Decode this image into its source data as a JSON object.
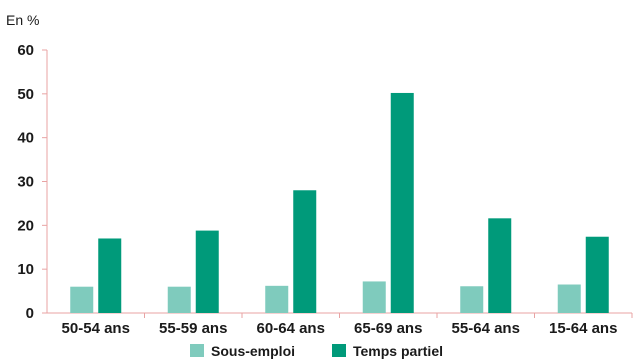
{
  "chart_data": {
    "type": "bar",
    "unit_label": "En %",
    "categories": [
      "50-54 ans",
      "55-59 ans",
      "60-64 ans",
      "65-69 ans",
      "55-64 ans",
      "15-64 ans"
    ],
    "series": [
      {
        "name": "Sous-emploi",
        "color": "#7fcbbd",
        "values": [
          6,
          6,
          6.2,
          7.2,
          6.1,
          6.5
        ]
      },
      {
        "name": "Temps partiel",
        "color": "#009a7a",
        "values": [
          17,
          18.8,
          28,
          50.2,
          21.6,
          17.4
        ]
      }
    ],
    "ylim": [
      0,
      60
    ],
    "yticks": [
      0,
      10,
      20,
      30,
      40,
      50,
      60
    ],
    "grid": false,
    "axis_color": "#e8a3a3",
    "legend_position": "bottom"
  }
}
